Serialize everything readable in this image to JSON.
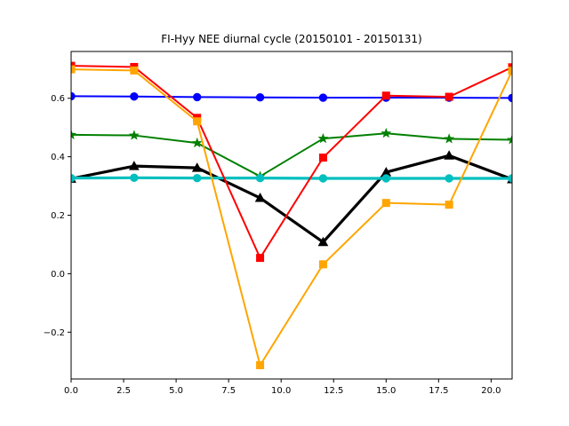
{
  "chart_data": {
    "type": "line",
    "title": "FI-Hyy NEE diurnal cycle (20150101 - 20150131)",
    "xlabel": "",
    "ylabel": "",
    "xlim": [
      0,
      21
    ],
    "ylim": [
      -0.36,
      0.76
    ],
    "x_ticks": [
      0,
      2.5,
      5,
      7.5,
      10,
      12.5,
      15,
      17.5,
      20
    ],
    "x_tick_labels": [
      "0.0",
      "2.5",
      "5.0",
      "7.5",
      "10.0",
      "12.5",
      "15.0",
      "17.5",
      "20.0"
    ],
    "y_ticks": [
      -0.2,
      0,
      0.2,
      0.4,
      0.6
    ],
    "y_tick_labels": [
      "−0.2",
      "0.0",
      "0.2",
      "0.4",
      "0.6"
    ],
    "grid": false,
    "legend": "none",
    "x": [
      0,
      3,
      6,
      9,
      12,
      15,
      18,
      21
    ],
    "series": [
      {
        "color": "#0000ff",
        "marker": "circle",
        "line_width": "normal",
        "values": [
          0.607,
          0.606,
          0.604,
          0.603,
          0.602,
          0.602,
          0.602,
          0.601
        ]
      },
      {
        "color": "#008000",
        "marker": "star",
        "line_width": "normal",
        "values": [
          0.475,
          0.473,
          0.447,
          0.333,
          0.462,
          0.48,
          0.461,
          0.458
        ]
      },
      {
        "color": "#000000",
        "marker": "triangle",
        "line_width": "thick",
        "values": [
          0.325,
          0.368,
          0.362,
          0.259,
          0.108,
          0.347,
          0.404,
          0.323
        ]
      },
      {
        "color": "#00bfbf",
        "marker": "circle",
        "line_width": "thick",
        "values": [
          0.327,
          0.328,
          0.327,
          0.327,
          0.326,
          0.326,
          0.326,
          0.326
        ]
      },
      {
        "color": "#ff0000",
        "marker": "square",
        "line_width": "normal",
        "values": [
          0.711,
          0.707,
          0.533,
          0.054,
          0.397,
          0.609,
          0.605,
          0.706
        ]
      },
      {
        "color": "#ffa500",
        "marker": "square",
        "line_width": "normal",
        "values": [
          0.699,
          0.695,
          0.521,
          -0.313,
          0.032,
          0.242,
          0.236,
          0.694
        ]
      }
    ]
  }
}
